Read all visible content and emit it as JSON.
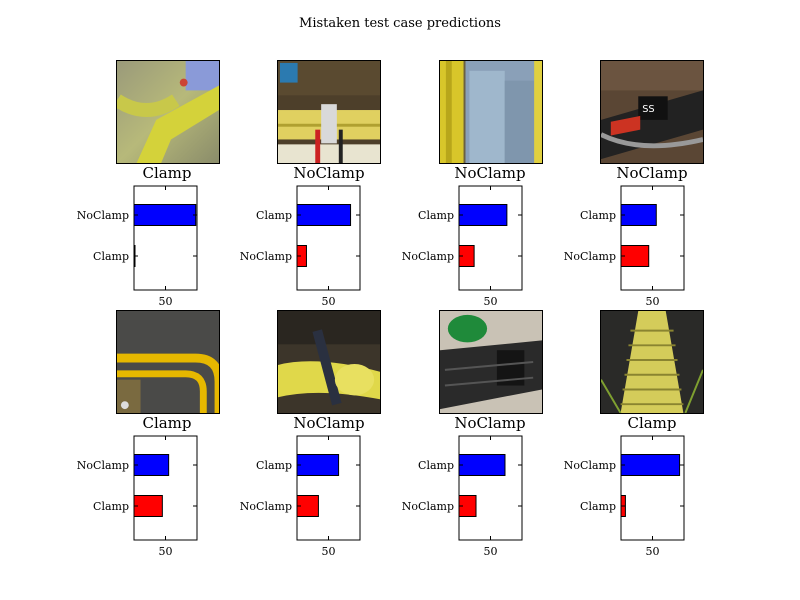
{
  "figure": {
    "title": "Mistaken test case predictions",
    "colors": {
      "top_bar": "#0000ff",
      "bottom_bar": "#ff0000",
      "axes": "#000000"
    }
  },
  "chart_data": [
    {
      "type": "bar",
      "orientation": "horizontal",
      "true_label": "Clamp",
      "image_icon": "yellow-clamp-photo",
      "categories": [
        "Clamp",
        "NoClamp"
      ],
      "values": [
        1,
        98
      ],
      "xlim": [
        0,
        100
      ],
      "xticks": [
        50
      ]
    },
    {
      "type": "bar",
      "orientation": "horizontal",
      "true_label": "NoClamp",
      "image_icon": "yellow-pipe-trench-photo",
      "categories": [
        "NoClamp",
        "Clamp"
      ],
      "values": [
        15,
        85
      ],
      "xlim": [
        0,
        100
      ],
      "xticks": [
        50
      ]
    },
    {
      "type": "bar",
      "orientation": "horizontal",
      "true_label": "NoClamp",
      "image_icon": "blue-pipe-photo",
      "categories": [
        "NoClamp",
        "Clamp"
      ],
      "values": [
        24,
        76
      ],
      "xlim": [
        0,
        100
      ],
      "xticks": [
        50
      ]
    },
    {
      "type": "bar",
      "orientation": "horizontal",
      "true_label": "NoClamp",
      "image_icon": "black-pipe-fitting-photo",
      "categories": [
        "NoClamp",
        "Clamp"
      ],
      "values": [
        44,
        56
      ],
      "xlim": [
        0,
        100
      ],
      "xticks": [
        50
      ]
    },
    {
      "type": "bar",
      "orientation": "horizontal",
      "true_label": "Clamp",
      "image_icon": "yellow-frame-on-asphalt-photo",
      "categories": [
        "Clamp",
        "NoClamp"
      ],
      "values": [
        45,
        55
      ],
      "xlim": [
        0,
        100
      ],
      "xticks": [
        50
      ]
    },
    {
      "type": "bar",
      "orientation": "horizontal",
      "true_label": "NoClamp",
      "image_icon": "yellow-pipe-blur-photo",
      "categories": [
        "NoClamp",
        "Clamp"
      ],
      "values": [
        34,
        66
      ],
      "xlim": [
        0,
        100
      ],
      "xticks": [
        50
      ]
    },
    {
      "type": "bar",
      "orientation": "horizontal",
      "true_label": "NoClamp",
      "image_icon": "black-pipe-green-fitting-photo",
      "categories": [
        "NoClamp",
        "Clamp"
      ],
      "values": [
        27,
        73
      ],
      "xlim": [
        0,
        100
      ],
      "xticks": [
        50
      ]
    },
    {
      "type": "bar",
      "orientation": "horizontal",
      "true_label": "Clamp",
      "image_icon": "yellow-wrapped-pipe-photo",
      "categories": [
        "Clamp",
        "NoClamp"
      ],
      "values": [
        7,
        93
      ],
      "xlim": [
        0,
        100
      ],
      "xticks": [
        50
      ]
    }
  ]
}
